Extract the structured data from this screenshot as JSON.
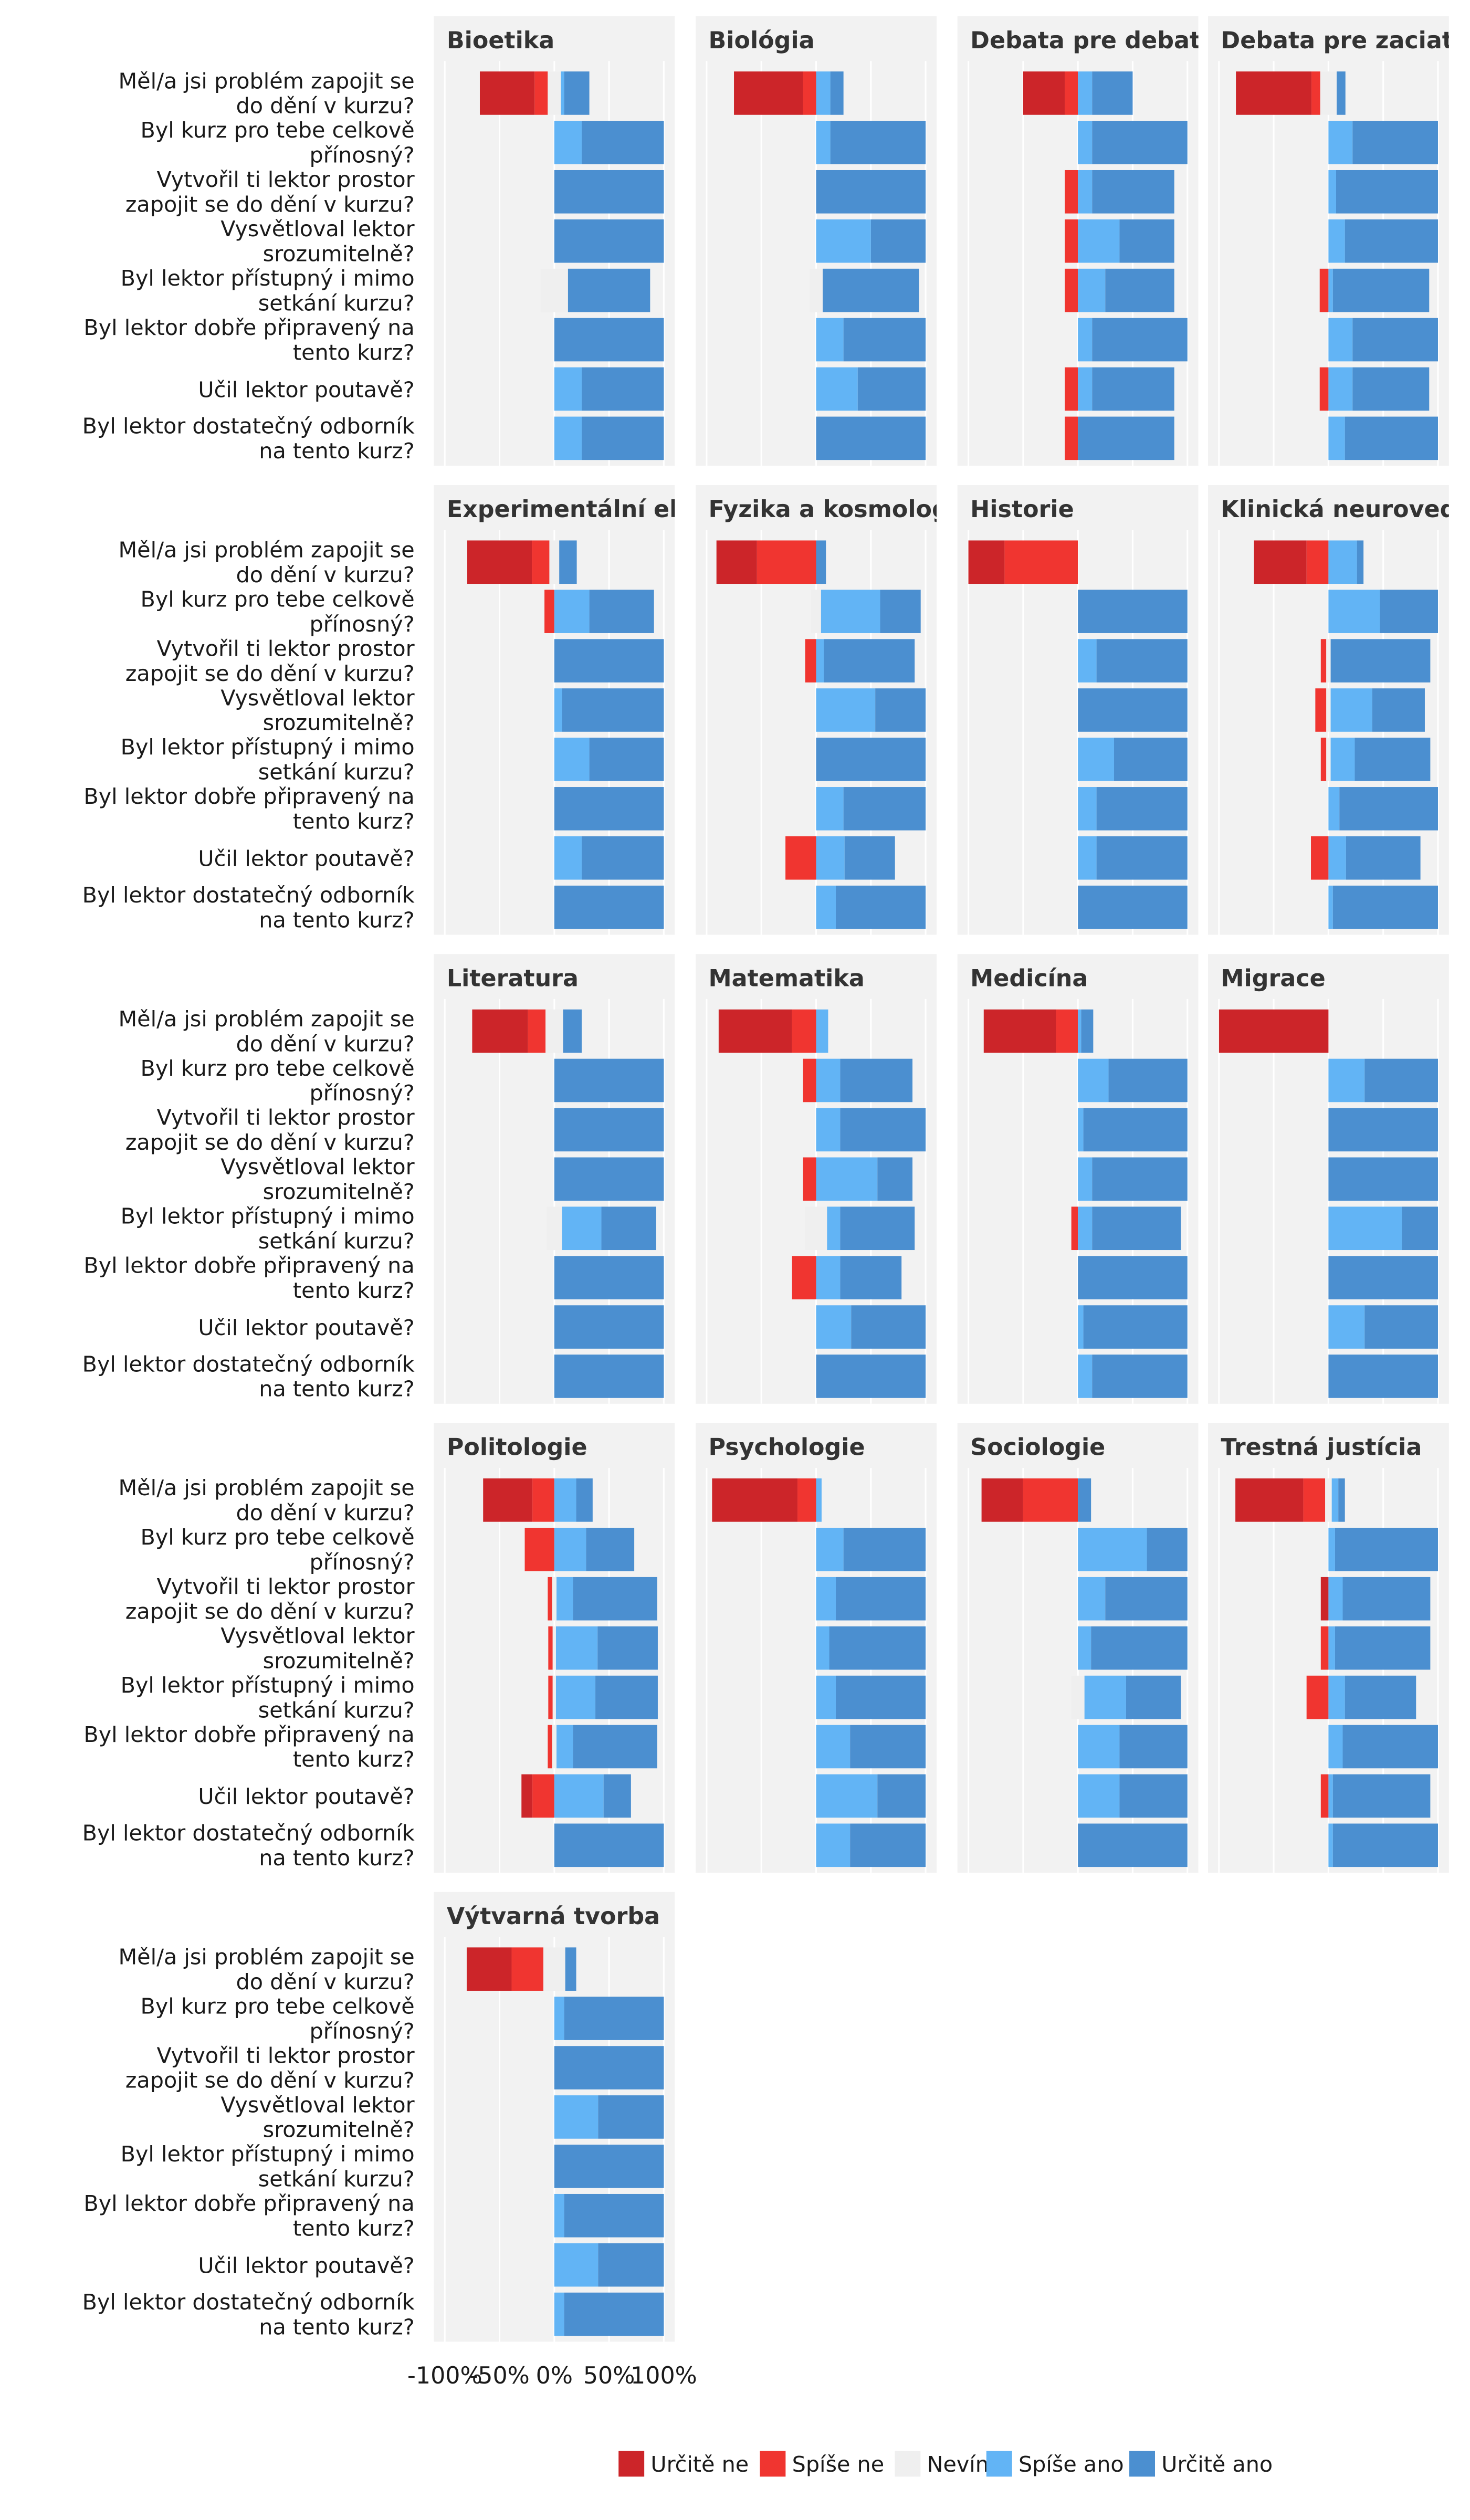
{
  "chart_data": {
    "type": "bar",
    "stacking": "diverging",
    "categories": [
      "Měl/a jsi problém zapojit se do dění v kurzu?",
      "Byl kurz pro tebe celkově přínosný?",
      "Vytvořil ti lektor prostor zapojit se do dění v kurzu?",
      "Vysvětloval lektor srozumitelně?",
      "Byl lektor přístupný i mimo setkání kurzu?",
      "Byl lektor dobře připravený na tento kurz?",
      "Učil lektor poutavě?",
      "Byl lektor dostatečný odborník na tento kurz?"
    ],
    "series": [
      {
        "name": "Určitě ne",
        "color": "#cc2529"
      },
      {
        "name": "Spíše ne",
        "color": "#f03530"
      },
      {
        "name": "Nevím",
        "color": "#efefef"
      },
      {
        "name": "Spíše ano",
        "color": "#62b4f5"
      },
      {
        "name": "Určitě ano",
        "color": "#4b8fd0"
      }
    ],
    "xlim": [
      -110,
      110
    ],
    "xticks": [
      {
        "value": -100,
        "label": "-100%"
      },
      {
        "value": -50,
        "label": "-50%"
      },
      {
        "value": 0,
        "label": "0%"
      },
      {
        "value": 50,
        "label": "50%"
      },
      {
        "value": 100,
        "label": "100%"
      }
    ],
    "grid": true,
    "panels": [
      {
        "title": "Bioetika",
        "values": [
          [
            50,
            12,
            12,
            3,
            23
          ],
          [
            0,
            0,
            0,
            25,
            75
          ],
          [
            0,
            0,
            0,
            0,
            100
          ],
          [
            0,
            0,
            0,
            0,
            100
          ],
          [
            0,
            0,
            25,
            0,
            75
          ],
          [
            0,
            0,
            0,
            0,
            100
          ],
          [
            0,
            0,
            0,
            25,
            75
          ],
          [
            0,
            0,
            0,
            25,
            75
          ]
        ]
      },
      {
        "title": "Biológia",
        "values": [
          [
            63,
            12,
            0,
            13,
            12
          ],
          [
            0,
            0,
            0,
            13,
            87
          ],
          [
            0,
            0,
            0,
            0,
            100
          ],
          [
            0,
            0,
            0,
            50,
            50
          ],
          [
            0,
            0,
            12,
            0,
            88
          ],
          [
            0,
            0,
            0,
            25,
            75
          ],
          [
            0,
            0,
            0,
            38,
            62
          ],
          [
            0,
            0,
            0,
            0,
            100
          ]
        ]
      },
      {
        "title": "Debata pre debatérov",
        "values": [
          [
            38,
            12,
            0,
            13,
            37
          ],
          [
            0,
            0,
            0,
            13,
            87
          ],
          [
            0,
            12,
            0,
            13,
            75
          ],
          [
            0,
            12,
            0,
            38,
            50
          ],
          [
            0,
            12,
            0,
            25,
            63
          ],
          [
            0,
            0,
            0,
            13,
            87
          ],
          [
            0,
            12,
            0,
            13,
            75
          ],
          [
            0,
            12,
            0,
            0,
            88
          ]
        ]
      },
      {
        "title": "Debata pre zaciatocnikov",
        "values": [
          [
            69,
            8,
            15,
            0,
            8
          ],
          [
            0,
            0,
            0,
            22,
            78
          ],
          [
            0,
            0,
            0,
            7,
            93
          ],
          [
            0,
            0,
            0,
            15,
            85
          ],
          [
            0,
            8,
            0,
            4,
            88
          ],
          [
            0,
            0,
            0,
            22,
            78
          ],
          [
            0,
            8,
            0,
            22,
            70
          ],
          [
            0,
            0,
            0,
            15,
            85
          ]
        ]
      },
      {
        "title": "Experimentální ekonomie",
        "values": [
          [
            59,
            16,
            9,
            0,
            16
          ],
          [
            0,
            9,
            0,
            32,
            59
          ],
          [
            0,
            0,
            0,
            0,
            100
          ],
          [
            0,
            0,
            0,
            7,
            93
          ],
          [
            0,
            0,
            0,
            32,
            68
          ],
          [
            0,
            0,
            0,
            0,
            100
          ],
          [
            0,
            0,
            0,
            25,
            75
          ],
          [
            0,
            0,
            0,
            0,
            100
          ]
        ]
      },
      {
        "title": "Fyzika a kosmologie",
        "values": [
          [
            37,
            54,
            0,
            0,
            9
          ],
          [
            0,
            0,
            9,
            54,
            37
          ],
          [
            0,
            10,
            0,
            7,
            83
          ],
          [
            0,
            0,
            0,
            54,
            46
          ],
          [
            0,
            0,
            0,
            0,
            100
          ],
          [
            0,
            0,
            0,
            25,
            75
          ],
          [
            0,
            28,
            0,
            26,
            46
          ],
          [
            0,
            0,
            0,
            18,
            82
          ]
        ]
      },
      {
        "title": "Historie",
        "values": [
          [
            33,
            67,
            0,
            0,
            0
          ],
          [
            0,
            0,
            0,
            0,
            100
          ],
          [
            0,
            0,
            0,
            17,
            83
          ],
          [
            0,
            0,
            0,
            0,
            100
          ],
          [
            0,
            0,
            0,
            33,
            67
          ],
          [
            0,
            0,
            0,
            17,
            83
          ],
          [
            0,
            0,
            0,
            17,
            83
          ],
          [
            0,
            0,
            0,
            0,
            100
          ]
        ]
      },
      {
        "title": "Klinická neuroveda",
        "values": [
          [
            48,
            20,
            0,
            26,
            6
          ],
          [
            0,
            0,
            0,
            47,
            53
          ],
          [
            0,
            5,
            4,
            0,
            91
          ],
          [
            0,
            10,
            4,
            38,
            48
          ],
          [
            0,
            5,
            4,
            22,
            69
          ],
          [
            0,
            0,
            0,
            10,
            90
          ],
          [
            0,
            16,
            0,
            16,
            68
          ],
          [
            0,
            0,
            0,
            4,
            96
          ]
        ]
      },
      {
        "title": "Literatura",
        "values": [
          [
            51,
            16,
            16,
            0,
            17
          ],
          [
            0,
            0,
            0,
            0,
            100
          ],
          [
            0,
            0,
            0,
            0,
            100
          ],
          [
            0,
            0,
            0,
            0,
            100
          ],
          [
            0,
            0,
            14,
            36,
            50
          ],
          [
            0,
            0,
            0,
            0,
            100
          ],
          [
            0,
            0,
            0,
            0,
            100
          ],
          [
            0,
            0,
            0,
            0,
            100
          ]
        ]
      },
      {
        "title": "Matematika",
        "values": [
          [
            67,
            22,
            0,
            11,
            0
          ],
          [
            0,
            12,
            0,
            22,
            66
          ],
          [
            0,
            0,
            0,
            22,
            78
          ],
          [
            0,
            12,
            0,
            56,
            32
          ],
          [
            0,
            0,
            20,
            12,
            68
          ],
          [
            0,
            22,
            0,
            22,
            56
          ],
          [
            0,
            0,
            0,
            32,
            68
          ],
          [
            0,
            0,
            0,
            0,
            100
          ]
        ]
      },
      {
        "title": "Medicína",
        "values": [
          [
            66,
            20,
            0,
            3,
            11
          ],
          [
            0,
            0,
            0,
            28,
            72
          ],
          [
            0,
            0,
            0,
            5,
            95
          ],
          [
            0,
            0,
            0,
            13,
            87
          ],
          [
            0,
            6,
            0,
            13,
            81
          ],
          [
            0,
            0,
            0,
            0,
            100
          ],
          [
            0,
            0,
            0,
            5,
            95
          ],
          [
            0,
            0,
            0,
            13,
            87
          ]
        ]
      },
      {
        "title": "Migrace",
        "values": [
          [
            100,
            0,
            0,
            0,
            0
          ],
          [
            0,
            0,
            0,
            33,
            67
          ],
          [
            0,
            0,
            0,
            0,
            100
          ],
          [
            0,
            0,
            0,
            0,
            100
          ],
          [
            0,
            0,
            0,
            67,
            33
          ],
          [
            0,
            0,
            0,
            0,
            100
          ],
          [
            0,
            0,
            0,
            33,
            67
          ],
          [
            0,
            0,
            0,
            0,
            100
          ]
        ]
      },
      {
        "title": "Politologie",
        "values": [
          [
            45,
            20,
            0,
            20,
            15
          ],
          [
            0,
            27,
            0,
            29,
            44
          ],
          [
            0,
            4,
            4,
            15,
            77
          ],
          [
            0,
            4,
            3,
            38,
            55
          ],
          [
            0,
            4,
            3,
            36,
            57
          ],
          [
            0,
            4,
            4,
            15,
            77
          ],
          [
            10,
            20,
            0,
            45,
            25
          ],
          [
            0,
            0,
            0,
            0,
            100
          ]
        ]
      },
      {
        "title": "Psychologie",
        "values": [
          [
            78,
            17,
            0,
            5,
            0
          ],
          [
            0,
            0,
            0,
            25,
            75
          ],
          [
            0,
            0,
            0,
            18,
            82
          ],
          [
            0,
            0,
            0,
            12,
            88
          ],
          [
            0,
            0,
            0,
            18,
            82
          ],
          [
            0,
            0,
            0,
            31,
            69
          ],
          [
            0,
            0,
            0,
            56,
            44
          ],
          [
            0,
            0,
            0,
            31,
            69
          ]
        ]
      },
      {
        "title": "Sociologie",
        "values": [
          [
            38,
            50,
            0,
            0,
            12
          ],
          [
            0,
            0,
            0,
            63,
            37
          ],
          [
            0,
            0,
            0,
            25,
            75
          ],
          [
            0,
            0,
            0,
            12,
            88
          ],
          [
            0,
            0,
            12,
            38,
            50
          ],
          [
            0,
            0,
            0,
            38,
            62
          ],
          [
            0,
            0,
            0,
            38,
            62
          ],
          [
            0,
            0,
            0,
            0,
            100
          ]
        ]
      },
      {
        "title": "Trestná justícia",
        "values": [
          [
            62,
            20,
            6,
            6,
            6
          ],
          [
            0,
            0,
            0,
            6,
            94
          ],
          [
            7,
            0,
            0,
            13,
            80
          ],
          [
            0,
            7,
            0,
            6,
            87
          ],
          [
            0,
            20,
            0,
            15,
            65
          ],
          [
            0,
            0,
            0,
            13,
            87
          ],
          [
            0,
            7,
            0,
            4,
            89
          ],
          [
            0,
            0,
            0,
            4,
            96
          ]
        ]
      },
      {
        "title": "Výtvarná tvorba",
        "values": [
          [
            41,
            29,
            20,
            0,
            10
          ],
          [
            0,
            0,
            0,
            9,
            91
          ],
          [
            0,
            0,
            0,
            0,
            100
          ],
          [
            0,
            0,
            0,
            40,
            60
          ],
          [
            0,
            0,
            0,
            0,
            100
          ],
          [
            0,
            0,
            0,
            9,
            91
          ],
          [
            0,
            0,
            0,
            40,
            60
          ],
          [
            0,
            0,
            0,
            9,
            91
          ]
        ]
      }
    ]
  }
}
